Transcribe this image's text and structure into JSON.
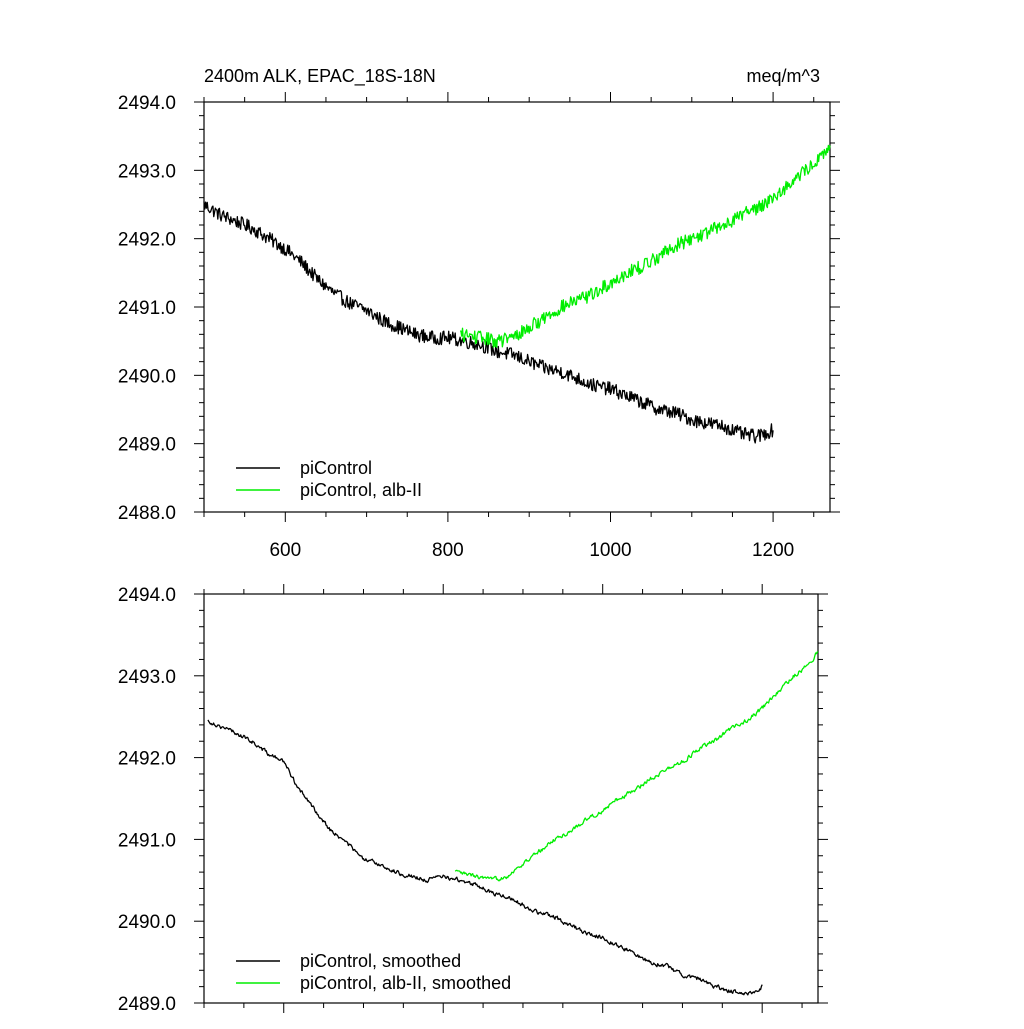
{
  "chart_data": [
    {
      "type": "line",
      "title": "2400m ALK, EPAC_18S-18N",
      "units": "meq/m^3",
      "xlim": [
        500,
        1270
      ],
      "ylim": [
        2488.0,
        2494.0
      ],
      "x_ticks": [
        600,
        800,
        1000,
        1200
      ],
      "x_tick_labels": [
        "600",
        "800",
        "1000",
        "1200"
      ],
      "y_ticks": [
        2488.0,
        2489.0,
        2490.0,
        2491.0,
        2492.0,
        2493.0,
        2494.0
      ],
      "y_tick_labels": [
        "2488.0",
        "2489.0",
        "2490.0",
        "2491.0",
        "2492.0",
        "2493.0",
        "2494.0"
      ],
      "grid": false,
      "legend_position": "bottom-left",
      "series": [
        {
          "name": "piControl",
          "color": "#000000",
          "x": [
            500,
            520,
            540,
            560,
            580,
            600,
            620,
            640,
            660,
            680,
            700,
            720,
            740,
            760,
            780,
            800,
            820,
            840,
            860,
            880,
            900,
            920,
            940,
            960,
            980,
            1000,
            1020,
            1040,
            1060,
            1080,
            1100,
            1120,
            1140,
            1160,
            1180,
            1200
          ],
          "y": [
            2492.5,
            2492.35,
            2492.25,
            2492.15,
            2492.0,
            2491.85,
            2491.65,
            2491.4,
            2491.2,
            2491.05,
            2490.95,
            2490.8,
            2490.7,
            2490.6,
            2490.55,
            2490.55,
            2490.5,
            2490.45,
            2490.35,
            2490.3,
            2490.2,
            2490.1,
            2490.05,
            2489.95,
            2489.85,
            2489.8,
            2489.7,
            2489.6,
            2489.5,
            2489.45,
            2489.35,
            2489.3,
            2489.25,
            2489.15,
            2489.1,
            2489.2
          ],
          "noise": 0.1
        },
        {
          "name": "piControl, alb-II",
          "color": "#00ee00",
          "x": [
            815,
            840,
            860,
            880,
            900,
            920,
            940,
            960,
            980,
            1000,
            1020,
            1040,
            1060,
            1080,
            1100,
            1120,
            1140,
            1160,
            1180,
            1200,
            1220,
            1240,
            1260,
            1270
          ],
          "y": [
            2490.6,
            2490.55,
            2490.5,
            2490.55,
            2490.7,
            2490.85,
            2491.0,
            2491.1,
            2491.2,
            2491.35,
            2491.5,
            2491.6,
            2491.75,
            2491.9,
            2492.0,
            2492.1,
            2492.2,
            2492.35,
            2492.45,
            2492.6,
            2492.8,
            2493.0,
            2493.2,
            2493.35
          ],
          "noise": 0.1
        }
      ]
    },
    {
      "type": "line",
      "xlim": [
        500,
        1270
      ],
      "ylim": [
        2489.0,
        2494.0
      ],
      "x_ticks": [
        600,
        800,
        1000,
        1200
      ],
      "y_ticks": [
        2489.0,
        2490.0,
        2491.0,
        2492.0,
        2493.0,
        2494.0
      ],
      "y_tick_labels": [
        "2489.0",
        "2490.0",
        "2491.0",
        "2492.0",
        "2493.0",
        "2494.0"
      ],
      "grid": false,
      "legend_position": "bottom-left",
      "series": [
        {
          "name": "piControl, smoothed",
          "color": "#000000",
          "x": [
            505,
            540,
            560,
            580,
            600,
            620,
            640,
            660,
            680,
            700,
            720,
            740,
            760,
            780,
            800,
            820,
            840,
            860,
            880,
            900,
            920,
            940,
            960,
            980,
            1000,
            1020,
            1040,
            1060,
            1080,
            1100,
            1120,
            1140,
            1160,
            1180,
            1200
          ],
          "y": [
            2492.45,
            2492.3,
            2492.2,
            2492.05,
            2491.95,
            2491.6,
            2491.35,
            2491.1,
            2490.95,
            2490.75,
            2490.7,
            2490.6,
            2490.55,
            2490.5,
            2490.55,
            2490.5,
            2490.45,
            2490.35,
            2490.3,
            2490.2,
            2490.1,
            2490.05,
            2489.95,
            2489.85,
            2489.8,
            2489.7,
            2489.6,
            2489.5,
            2489.45,
            2489.35,
            2489.3,
            2489.2,
            2489.15,
            2489.1,
            2489.2
          ],
          "noise": 0.03
        },
        {
          "name": "piControl, alb-II, smoothed",
          "color": "#00ee00",
          "x": [
            815,
            840,
            860,
            880,
            900,
            920,
            940,
            960,
            980,
            1000,
            1020,
            1040,
            1060,
            1080,
            1100,
            1120,
            1140,
            1160,
            1180,
            1200,
            1220,
            1240,
            1260,
            1270
          ],
          "y": [
            2490.6,
            2490.55,
            2490.5,
            2490.55,
            2490.7,
            2490.85,
            2491.0,
            2491.1,
            2491.25,
            2491.35,
            2491.5,
            2491.6,
            2491.75,
            2491.85,
            2491.95,
            2492.1,
            2492.2,
            2492.35,
            2492.45,
            2492.6,
            2492.8,
            2493.0,
            2493.15,
            2493.3
          ],
          "noise": 0.03
        }
      ]
    }
  ]
}
